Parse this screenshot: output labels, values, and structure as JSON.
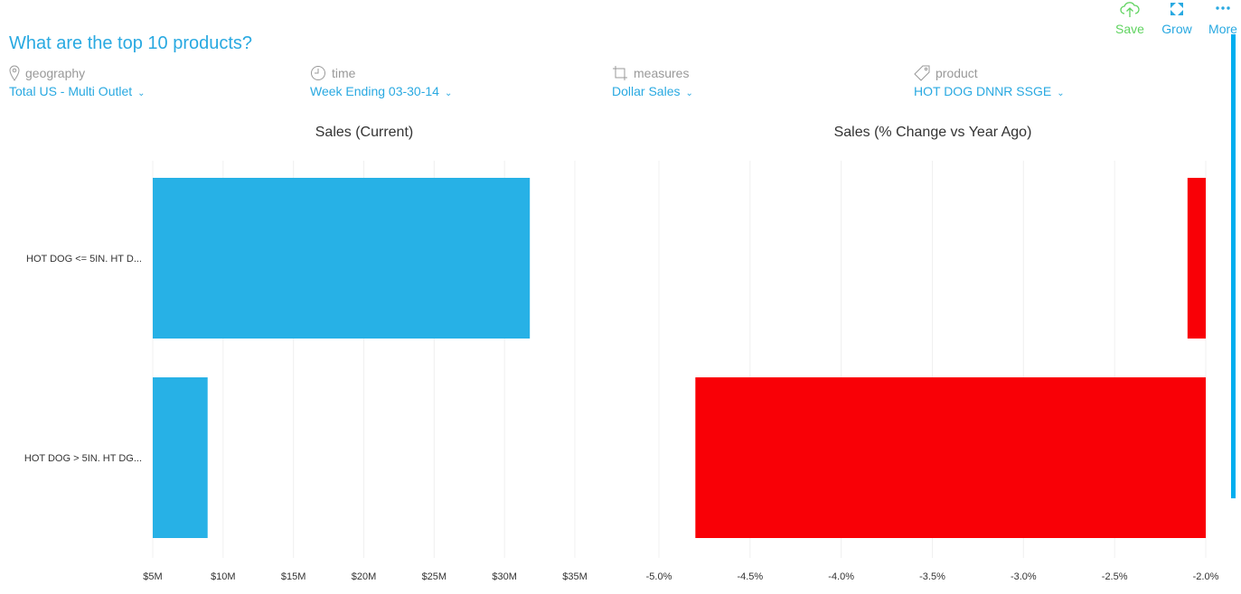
{
  "header": {
    "title": "What are the top 10 products?"
  },
  "toolbar": {
    "save": "Save",
    "grow": "Grow",
    "more": "More"
  },
  "filters": [
    {
      "label": "geography",
      "value": "Total US - Multi Outlet"
    },
    {
      "label": "time",
      "value": "Week Ending 03-30-14"
    },
    {
      "label": "measures",
      "value": "Dollar Sales"
    },
    {
      "label": "product",
      "value": "HOT DOG DNNR SSGE"
    }
  ],
  "chart_data": [
    {
      "type": "bar",
      "orientation": "horizontal",
      "title": "Sales (Current)",
      "categories": [
        "HOT DOG <= 5IN. HT D...",
        "HOT DOG > 5IN. HT DG..."
      ],
      "values": [
        31.8,
        8.9
      ],
      "unit": "$M",
      "xlim": [
        5,
        35
      ],
      "ticks": [
        5,
        10,
        15,
        20,
        25,
        30,
        35
      ],
      "tick_labels": [
        "$5M",
        "$10M",
        "$15M",
        "$20M",
        "$25M",
        "$30M",
        "$35M"
      ],
      "color": "#27b1e6"
    },
    {
      "type": "bar",
      "orientation": "horizontal",
      "title": "Sales (% Change vs Year Ago)",
      "categories": [
        "HOT DOG <= 5IN. HT D...",
        "HOT DOG > 5IN. HT DG..."
      ],
      "values": [
        -2.1,
        -4.8
      ],
      "unit": "%",
      "xlim": [
        -5.0,
        -2.0
      ],
      "ticks": [
        -5.0,
        -4.5,
        -4.0,
        -3.5,
        -3.0,
        -2.5,
        -2.0
      ],
      "tick_labels": [
        "-5.0%",
        "-4.5%",
        "-4.0%",
        "-3.5%",
        "-3.0%",
        "-2.5%",
        "-2.0%"
      ],
      "color": "#f90006"
    }
  ]
}
